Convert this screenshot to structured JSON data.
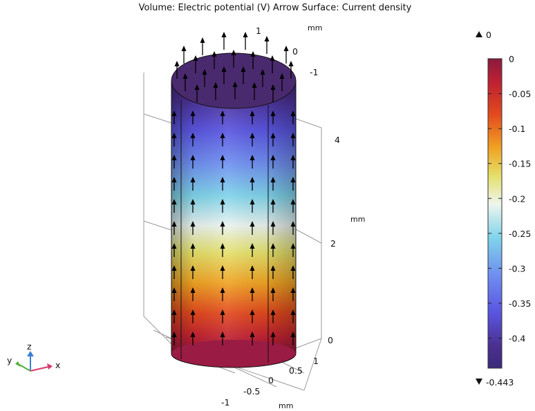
{
  "title": "Volume: Electric potential (V)  Arrow Surface: Current density",
  "chart_data": {
    "type": "heatmap",
    "title": "Volume: Electric potential (V)  Arrow Surface: Current density",
    "quantity": "Electric potential",
    "unit": "V",
    "arrow_quantity": "Current density",
    "colormap": "Rainbow",
    "range": {
      "max": 0,
      "min": -0.443
    },
    "max_label": "0",
    "min_label": "-0.443",
    "colorbar_ticks": [
      "0",
      "-0.05",
      "-0.1",
      "-0.15",
      "-0.2",
      "-0.25",
      "-0.3",
      "-0.35",
      "-0.4"
    ],
    "colorbar_tick_values": [
      0,
      -0.05,
      -0.1,
      -0.15,
      -0.2,
      -0.25,
      -0.3,
      -0.35,
      -0.4
    ],
    "axes": {
      "x": {
        "label": "x",
        "unit": "mm",
        "ticks": [
          "-1",
          "-0.5",
          "0",
          "0.5",
          "1"
        ]
      },
      "y": {
        "label": "y",
        "unit": "mm",
        "ticks": [
          "1",
          "0",
          "-1"
        ]
      },
      "z": {
        "label": "z",
        "unit": "mm",
        "ticks": [
          "4",
          "2",
          "0"
        ]
      }
    },
    "arrow_direction": "+z"
  },
  "triad": {
    "x": "x",
    "y": "y",
    "z": "z"
  }
}
